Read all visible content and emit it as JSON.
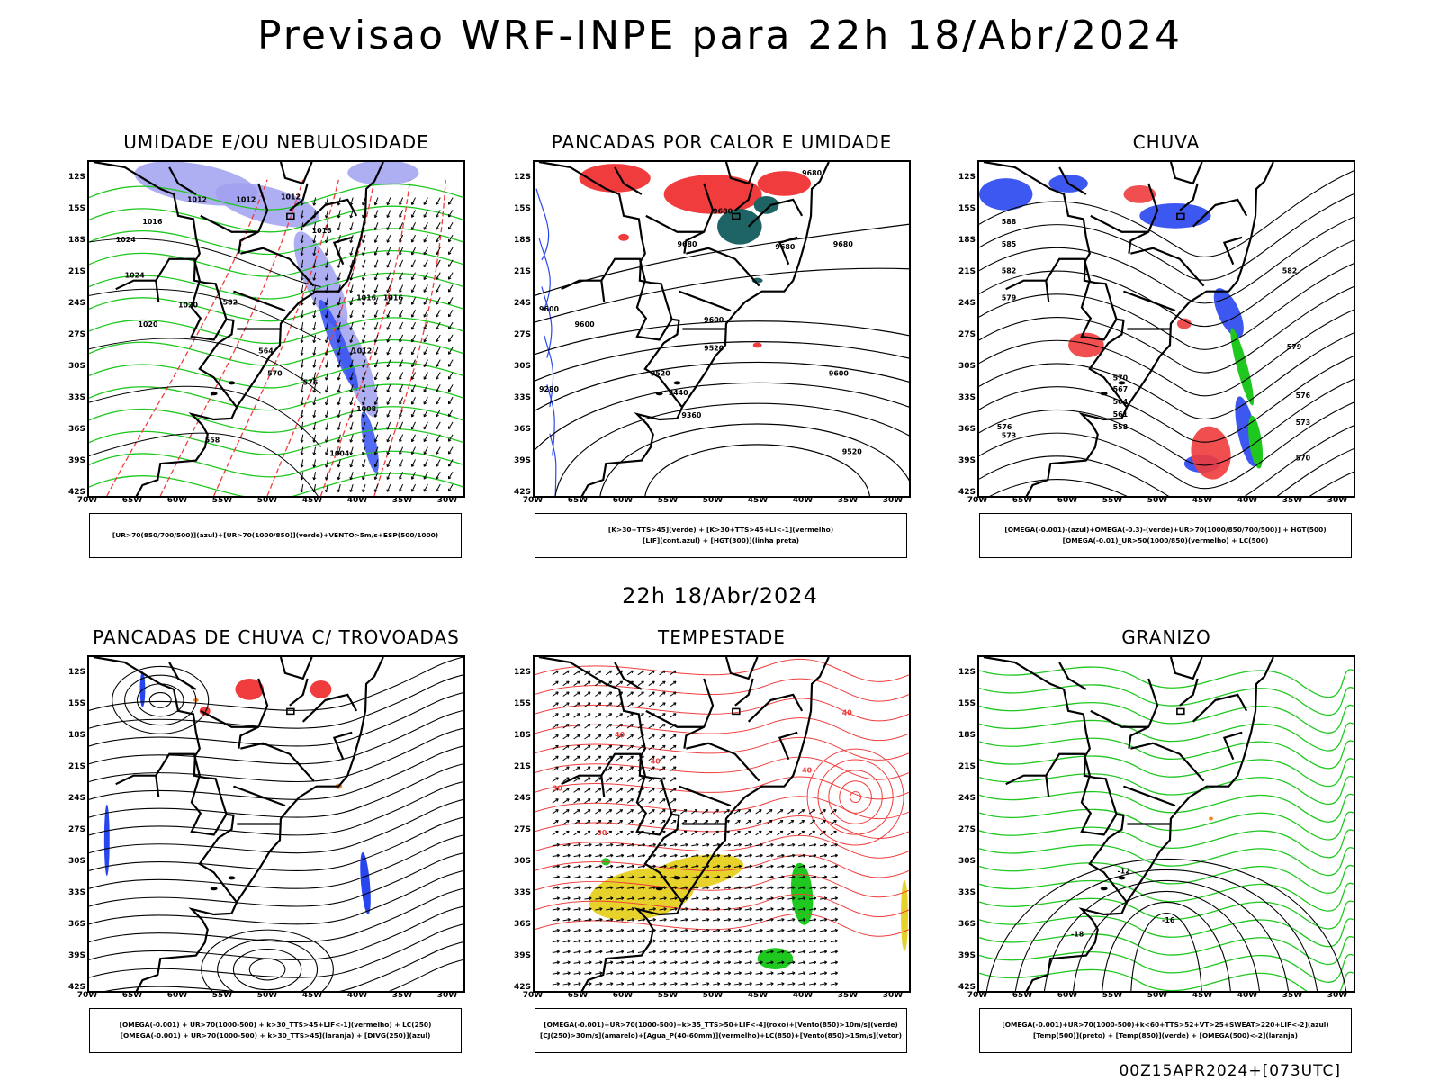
{
  "header": {
    "title": "Previsao WRF-INPE  para 22h 18/Abr/2024",
    "middle_title": "22h 18/Abr/2024",
    "footer_stamp": "00Z15APR2024+[073UTC]"
  },
  "axes": {
    "lat_labels": [
      "12S",
      "15S",
      "18S",
      "21S",
      "24S",
      "27S",
      "30S",
      "33S",
      "36S",
      "39S",
      "42S"
    ],
    "lon_labels": [
      "70W",
      "65W",
      "60W",
      "55W",
      "50W",
      "45W",
      "40W",
      "35W",
      "30W"
    ]
  },
  "panels": [
    {
      "id": "umidade",
      "title": "UMIDADE E/OU NEBULOSIDADE",
      "legend": [
        "[UR>70(850/700/500)](azul)+[UR>70(1000/850)](verde)+VENTO>5m/s+ESP(500/1000)"
      ],
      "contour_labels": [
        "1012",
        "1012",
        "1012",
        "1016",
        "1016",
        "1016",
        "1020",
        "1024",
        "1020",
        "1024",
        "1012",
        "1016",
        "1008",
        "1004",
        "558",
        "564",
        "570",
        "576",
        "582"
      ]
    },
    {
      "id": "calor",
      "title": "PANCADAS POR CALOR E UMIDADE",
      "legend": [
        "[K>30+TTS>45](verde) + [K>30+TTS>45+LI<-1](vermelho)",
        "[LIF](cont.azul) + [HGT(300)](linha preta)"
      ],
      "contour_labels": [
        "9680",
        "9680",
        "9680",
        "9680",
        "9680",
        "9600",
        "9600",
        "9600",
        "9520",
        "9520",
        "9440",
        "9360",
        "9280",
        "9520",
        "9600"
      ]
    },
    {
      "id": "chuva",
      "title": "CHUVA",
      "legend": [
        "[OMEGA(-0.001)-(azul)+OMEGA(-0.3)-(verde)+UR>70(1000/850/700/500)] + HGT(500)",
        "[OMEGA(-0.01)_UR>50(1000/850)(vermelho) + LC(500)"
      ],
      "contour_labels": [
        "588",
        "585",
        "582",
        "579",
        "576",
        "573",
        "570",
        "567",
        "564",
        "561",
        "558",
        "582",
        "579",
        "576",
        "573",
        "570"
      ]
    },
    {
      "id": "trovoadas",
      "title": "PANCADAS DE CHUVA C/ TROVOADAS",
      "legend": [
        "[OMEGA(-0.001) + UR>70(1000-500) + k>30_TTS>45+LIF<-1](vermelho) + LC(250)",
        "[OMEGA(-0.001) + UR>70(1000-500) + k>30_TTS>45](laranja) + [DIVG(250)](azul)"
      ],
      "contour_labels": []
    },
    {
      "id": "tempestade",
      "title": "TEMPESTADE",
      "legend": [
        "[OMEGA(-0.001)+UR>70(1000-500)+k>35_TTS>50+LIF<-4](roxo)+[Vento(850)>10m/s](verde)",
        "[CJ(250)>30m/s](amarelo)+[Agua_P(40-60mm)](vermelho)+LC(850)+[Vento(850)>15m/s](vetor)"
      ],
      "contour_labels": [
        "40",
        "40",
        "40",
        "40",
        "30",
        "30"
      ]
    },
    {
      "id": "granizo",
      "title": "GRANIZO",
      "legend": [
        "[OMEGA(-0.001)+UR>70(1000-500)+k<60+TTS>52+VT>25+SWEAT>220+LIF<-2](azul)",
        "[Temp(500)](preto) + [Temp(850)](verde) + [OMEGA(500)<-2](laranja)"
      ],
      "contour_labels": [
        "-12",
        "-16",
        "-18"
      ]
    }
  ],
  "colors": {
    "red": "#f03c3c",
    "blue": "#2846f0",
    "green": "#1ec81e",
    "lavender": "#a0a0f0",
    "teal": "#1e6464",
    "yellow": "#e6d22a",
    "orange": "#f08c28",
    "black": "#000000"
  }
}
